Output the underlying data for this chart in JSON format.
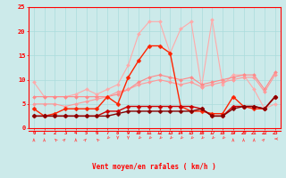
{
  "x": [
    0,
    1,
    2,
    3,
    4,
    5,
    6,
    7,
    8,
    9,
    10,
    11,
    12,
    13,
    14,
    15,
    16,
    17,
    18,
    19,
    20,
    21,
    22,
    23
  ],
  "series": [
    {
      "name": "line1_lightest_pink",
      "color": "#ffaaaa",
      "linewidth": 0.8,
      "markersize": 2.0,
      "values": [
        9.5,
        6.5,
        6.5,
        6.5,
        7.0,
        8.0,
        7.0,
        8.0,
        9.0,
        13.0,
        19.5,
        22.0,
        22.0,
        15.5,
        20.5,
        22.0,
        8.5,
        22.5,
        9.0,
        11.0,
        11.0,
        8.0,
        4.0,
        5.0
      ]
    },
    {
      "name": "line2_medium_pink",
      "color": "#ff8888",
      "linewidth": 0.8,
      "markersize": 2.0,
      "values": [
        6.5,
        6.5,
        6.5,
        6.5,
        6.5,
        6.5,
        6.5,
        6.5,
        7.0,
        8.0,
        9.5,
        10.5,
        11.0,
        10.5,
        10.0,
        10.5,
        9.0,
        9.5,
        10.0,
        10.5,
        11.0,
        11.0,
        8.0,
        11.5
      ]
    },
    {
      "name": "line3_medium_pink2",
      "color": "#ff9999",
      "linewidth": 0.8,
      "markersize": 2.0,
      "values": [
        5.0,
        5.0,
        5.0,
        4.5,
        5.0,
        5.5,
        6.0,
        6.5,
        7.5,
        8.0,
        9.0,
        9.5,
        10.0,
        9.5,
        9.0,
        9.5,
        8.5,
        9.0,
        9.5,
        10.0,
        10.5,
        10.5,
        7.5,
        11.0
      ]
    },
    {
      "name": "line4_red_bright",
      "color": "#ff2200",
      "linewidth": 1.0,
      "markersize": 2.5,
      "values": [
        4.0,
        2.5,
        3.0,
        4.0,
        4.0,
        4.0,
        4.0,
        6.5,
        5.0,
        10.5,
        14.0,
        17.0,
        17.0,
        15.5,
        4.5,
        3.5,
        3.5,
        3.0,
        3.0,
        6.5,
        4.5,
        4.0,
        4.0,
        6.5
      ]
    },
    {
      "name": "line5_dark_red",
      "color": "#cc0000",
      "linewidth": 1.0,
      "markersize": 2.5,
      "values": [
        2.5,
        2.5,
        2.5,
        2.5,
        2.5,
        2.5,
        2.5,
        3.5,
        3.5,
        4.5,
        4.5,
        4.5,
        4.5,
        4.5,
        4.5,
        4.5,
        4.0,
        2.5,
        2.5,
        4.5,
        4.5,
        4.5,
        4.0,
        6.5
      ]
    },
    {
      "name": "line6_very_dark_red",
      "color": "#880000",
      "linewidth": 1.0,
      "markersize": 2.5,
      "values": [
        2.5,
        2.5,
        2.5,
        2.5,
        2.5,
        2.5,
        2.5,
        2.5,
        3.0,
        3.5,
        3.5,
        3.5,
        3.5,
        3.5,
        3.5,
        3.5,
        4.0,
        2.5,
        2.5,
        4.0,
        4.5,
        4.5,
        4.0,
        6.5
      ]
    }
  ],
  "arrow_angles_deg": [
    90,
    90,
    135,
    45,
    90,
    45,
    135,
    225,
    270,
    270,
    225,
    225,
    225,
    225,
    225,
    225,
    225,
    225,
    225,
    90,
    90,
    90,
    45,
    180
  ],
  "xlabel": "Vent moyen/en rafales ( km/h )",
  "ylim": [
    0,
    25
  ],
  "yticks": [
    0,
    5,
    10,
    15,
    20,
    25
  ],
  "xlim": [
    -0.5,
    23.5
  ],
  "background_color": "#cceaea",
  "grid_color": "#aadddd",
  "axis_color": "#ff0000",
  "text_color": "#ff0000",
  "arrow_color": "#ff5555"
}
